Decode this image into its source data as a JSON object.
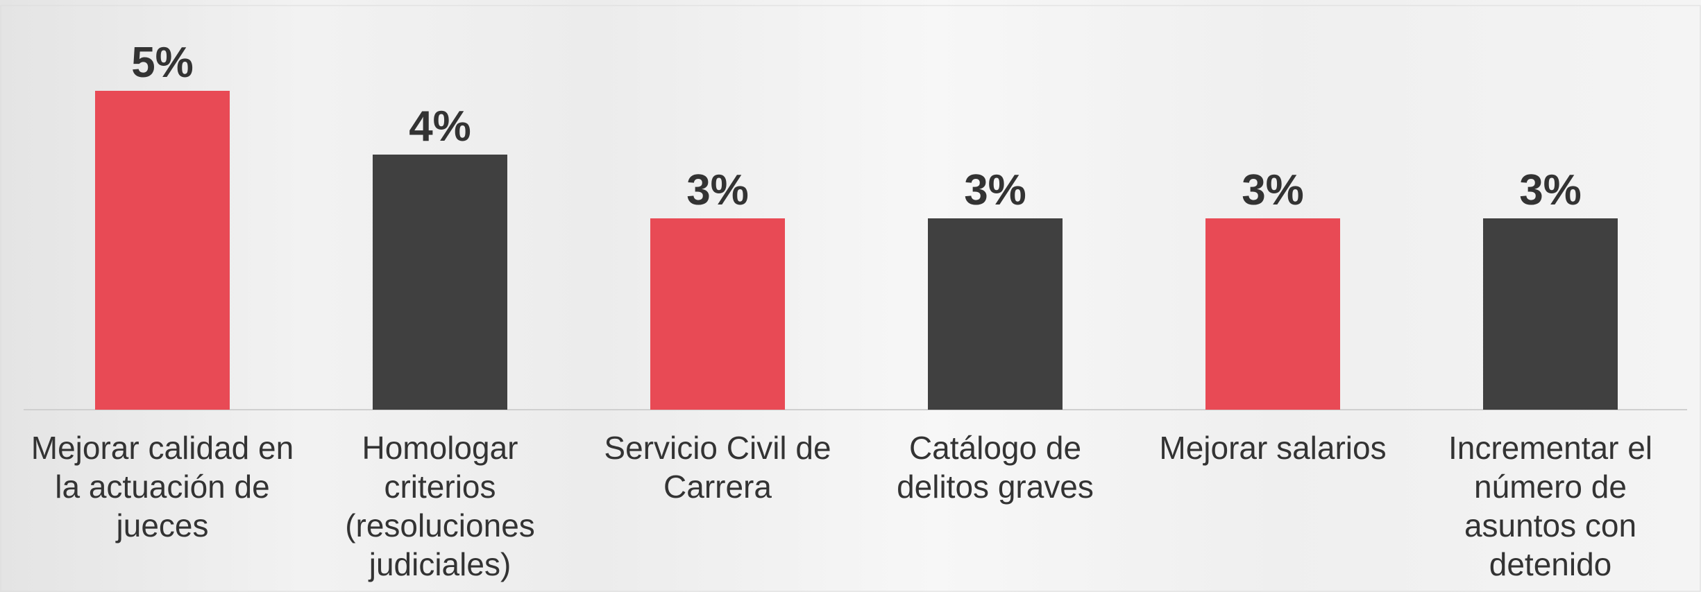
{
  "chart_data": {
    "type": "bar",
    "categories": [
      "Mejorar calidad en\nla actuación de\njueces",
      "Homologar\ncriterios\n(resoluciones\njudiciales)",
      "Servicio Civil de\nCarrera",
      "Catálogo de\ndelitos graves",
      "Mejorar salarios",
      "Incrementar el\nnúmero de\nasuntos con\ndetenido"
    ],
    "values": [
      5,
      4,
      3,
      3,
      3,
      3
    ],
    "value_labels": [
      "5%",
      "4%",
      "3%",
      "3%",
      "3%",
      "3%"
    ],
    "colors": [
      "#e84a55",
      "#404040",
      "#e84a55",
      "#404040",
      "#e84a55",
      "#404040"
    ]
  }
}
